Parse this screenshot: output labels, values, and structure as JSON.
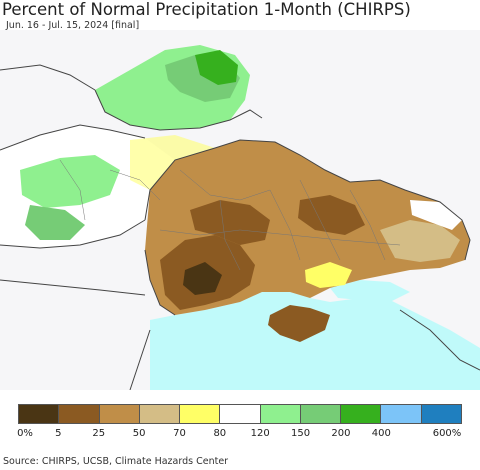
{
  "header": {
    "title": "Percent of Normal Precipitation 1-Month (CHIRPS)",
    "subtitle": "Jun. 16 - Jul. 15, 2024 [final]"
  },
  "legend": {
    "swatches": [
      {
        "color": "#4a3514"
      },
      {
        "color": "#8b5a22"
      },
      {
        "color": "#c08e48"
      },
      {
        "color": "#d4bd86"
      },
      {
        "color": "#ffff66"
      },
      {
        "color": "#ffffff"
      },
      {
        "color": "#8ff08f"
      },
      {
        "color": "#76cc76"
      },
      {
        "color": "#36b01e"
      },
      {
        "color": "#7cc4f8"
      },
      {
        "color": "#1f7fbf"
      }
    ],
    "labels": [
      "0%",
      "5",
      "25",
      "50",
      "70",
      "80",
      "120",
      "150",
      "200",
      "400",
      "600%"
    ]
  },
  "map": {
    "sea_color": "#c0fafa",
    "land_color": "#f6f6f8"
  },
  "footer": {
    "source": "Source: CHIRPS, UCSB, Climate Hazards Center"
  }
}
